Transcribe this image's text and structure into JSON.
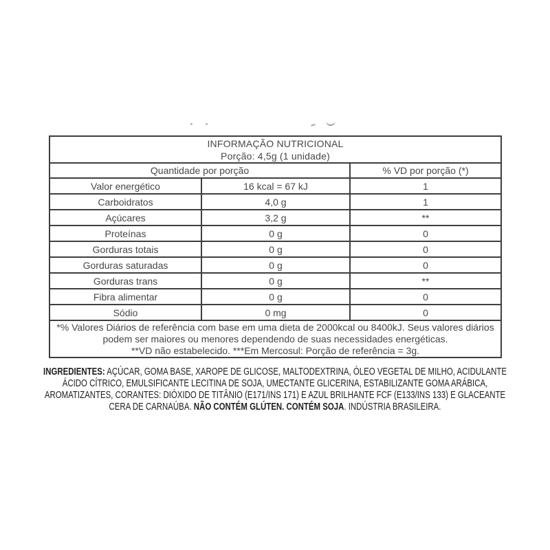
{
  "table": {
    "title": "INFORMAÇÃO NUTRICIONAL",
    "portion": "Porção: 4,5g (1 unidade)",
    "col_headers": {
      "quantity": "Quantidade por porção",
      "dv": "% VD por porção (*)"
    },
    "rows": [
      {
        "name": "Valor energético",
        "amount": "16 kcal = 67 kJ",
        "dv": "1"
      },
      {
        "name": "Carboidratos",
        "amount": "4,0 g",
        "dv": "1"
      },
      {
        "name": "Açúcares",
        "amount": "3,2 g",
        "dv": "**"
      },
      {
        "name": "Proteínas",
        "amount": "0 g",
        "dv": "0"
      },
      {
        "name": "Gorduras totais",
        "amount": "0 g",
        "dv": "0"
      },
      {
        "name": "Gorduras saturadas",
        "amount": "0 g",
        "dv": "0"
      },
      {
        "name": "Gorduras trans",
        "amount": "0 g",
        "dv": "**"
      },
      {
        "name": "Fibra alimentar",
        "amount": "0 g",
        "dv": "0"
      },
      {
        "name": "Sódio",
        "amount": "0 mg",
        "dv": "0"
      }
    ],
    "footnote_lines": [
      "*% Valores Diários de referência com base em uma dieta de 2000kcal ou 8400kJ. Seus valores diários",
      "podem ser maiores ou menores dependendo de suas necessidades energéticas.",
      "**VD não estabelecido. ***Em Mercosul: Porção de referência = 3g."
    ]
  },
  "ingredients": {
    "lines": [
      [
        {
          "text": "INGREDIENTES:",
          "bold": true
        },
        {
          "text": " AÇÚCAR, GOMA BASE, XAROPE DE GLICOSE, MALTODEXTRINA, ÓLEO VEGETAL DE MILHO, ACIDULANTE",
          "bold": false
        }
      ],
      [
        {
          "text": "ÁCIDO CÍTRICO, EMULSIFICANTE LECITINA DE SOJA, UMECTANTE GLICERINA, ESTABILIZANTE GOMA ARÁBICA,",
          "bold": false
        }
      ],
      [
        {
          "text": "AROMATIZANTES, CORANTES: DIÓXIDO DE TITÂNIO (E171/INS 171) E AZUL BRILHANTE FCF (E133/INS 133) E GLACEANTE",
          "bold": false
        }
      ],
      [
        {
          "text": "CERA DE CARNAÚBA. ",
          "bold": false
        },
        {
          "text": "NÃO CONTÉM GLÚTEN. CONTÉM SOJA",
          "bold": true
        },
        {
          "text": ". INDÚSTRIA BRASILEIRA.",
          "bold": false
        }
      ]
    ]
  },
  "colors": {
    "border": "#3e3e3e",
    "table_text": "#474747",
    "ingredients_text": "#1e1e1e",
    "background": "#ffffff"
  }
}
